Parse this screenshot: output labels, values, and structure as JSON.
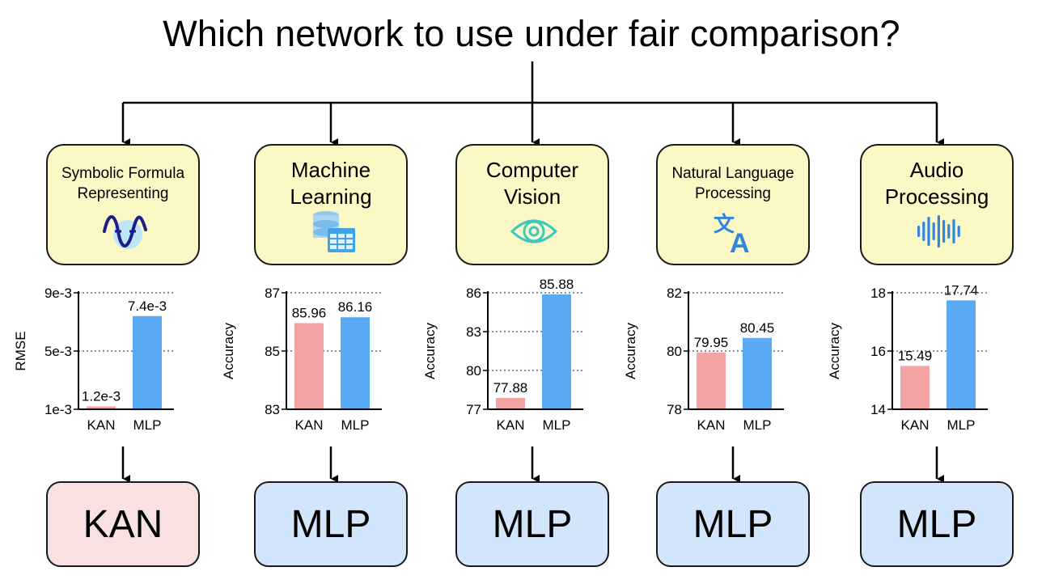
{
  "title": "Which network to use under fair comparison?",
  "colors": {
    "kan_bar": "#f2a3a3",
    "mlp_bar": "#5aa9f5",
    "box_fill": "#fbf8c6",
    "kan_result": "#f9e1e1",
    "mlp_result": "#d2e5fb"
  },
  "panels": [
    {
      "label": "Symbolic Formula\nRepresenting",
      "label_size": "small",
      "icon": "wave-function-icon",
      "result": "KAN",
      "result_kind": "kan",
      "chart_data": {
        "type": "bar",
        "categories": [
          "KAN",
          "MLP"
        ],
        "values": [
          0.0012,
          0.0074
        ],
        "value_labels": [
          "1.2e-3",
          "7.4e-3"
        ],
        "ylabel": "RMSE",
        "ylim": [
          0.001,
          0.009
        ],
        "yticks": [
          0.001,
          0.005,
          0.009
        ],
        "ytick_labels": [
          "1e-3",
          "5e-3",
          "9e-3"
        ],
        "grid": "horizontal dotted"
      }
    },
    {
      "label": "Machine\nLearning",
      "label_size": "large",
      "icon": "database-table-icon",
      "result": "MLP",
      "result_kind": "mlp",
      "chart_data": {
        "type": "bar",
        "categories": [
          "KAN",
          "MLP"
        ],
        "values": [
          85.96,
          86.16
        ],
        "value_labels": [
          "85.96",
          "86.16"
        ],
        "ylabel": "Accuracy",
        "ylim": [
          83,
          87
        ],
        "yticks": [
          83,
          85,
          87
        ],
        "ytick_labels": [
          "83",
          "85",
          "87"
        ],
        "grid": "horizontal dotted"
      }
    },
    {
      "label": "Computer\nVision",
      "label_size": "large",
      "icon": "eye-icon",
      "result": "MLP",
      "result_kind": "mlp",
      "chart_data": {
        "type": "bar",
        "categories": [
          "KAN",
          "MLP"
        ],
        "values": [
          77.88,
          85.88
        ],
        "value_labels": [
          "77.88",
          "85.88"
        ],
        "ylabel": "Accuracy",
        "ylim": [
          77,
          86
        ],
        "yticks": [
          77,
          80,
          83,
          86
        ],
        "ytick_labels": [
          "77",
          "80",
          "83",
          "86"
        ],
        "grid": "horizontal dotted"
      }
    },
    {
      "label": "Natural Language\nProcessing",
      "label_size": "small",
      "icon": "translate-icon",
      "result": "MLP",
      "result_kind": "mlp",
      "chart_data": {
        "type": "bar",
        "categories": [
          "KAN",
          "MLP"
        ],
        "values": [
          79.95,
          80.45
        ],
        "value_labels": [
          "79.95",
          "80.45"
        ],
        "ylabel": "Accuracy",
        "ylim": [
          78,
          82
        ],
        "yticks": [
          78,
          80,
          82
        ],
        "ytick_labels": [
          "78",
          "80",
          "82"
        ],
        "grid": "horizontal dotted"
      }
    },
    {
      "label": "Audio\nProcessing",
      "label_size": "large",
      "icon": "audio-waveform-icon",
      "result": "MLP",
      "result_kind": "mlp",
      "chart_data": {
        "type": "bar",
        "categories": [
          "KAN",
          "MLP"
        ],
        "values": [
          15.49,
          17.74
        ],
        "value_labels": [
          "15.49",
          "17.74"
        ],
        "ylabel": "Accuracy",
        "ylim": [
          14,
          18
        ],
        "yticks": [
          14,
          16,
          18
        ],
        "ytick_labels": [
          "14",
          "16",
          "18"
        ],
        "grid": "horizontal dotted"
      }
    }
  ]
}
